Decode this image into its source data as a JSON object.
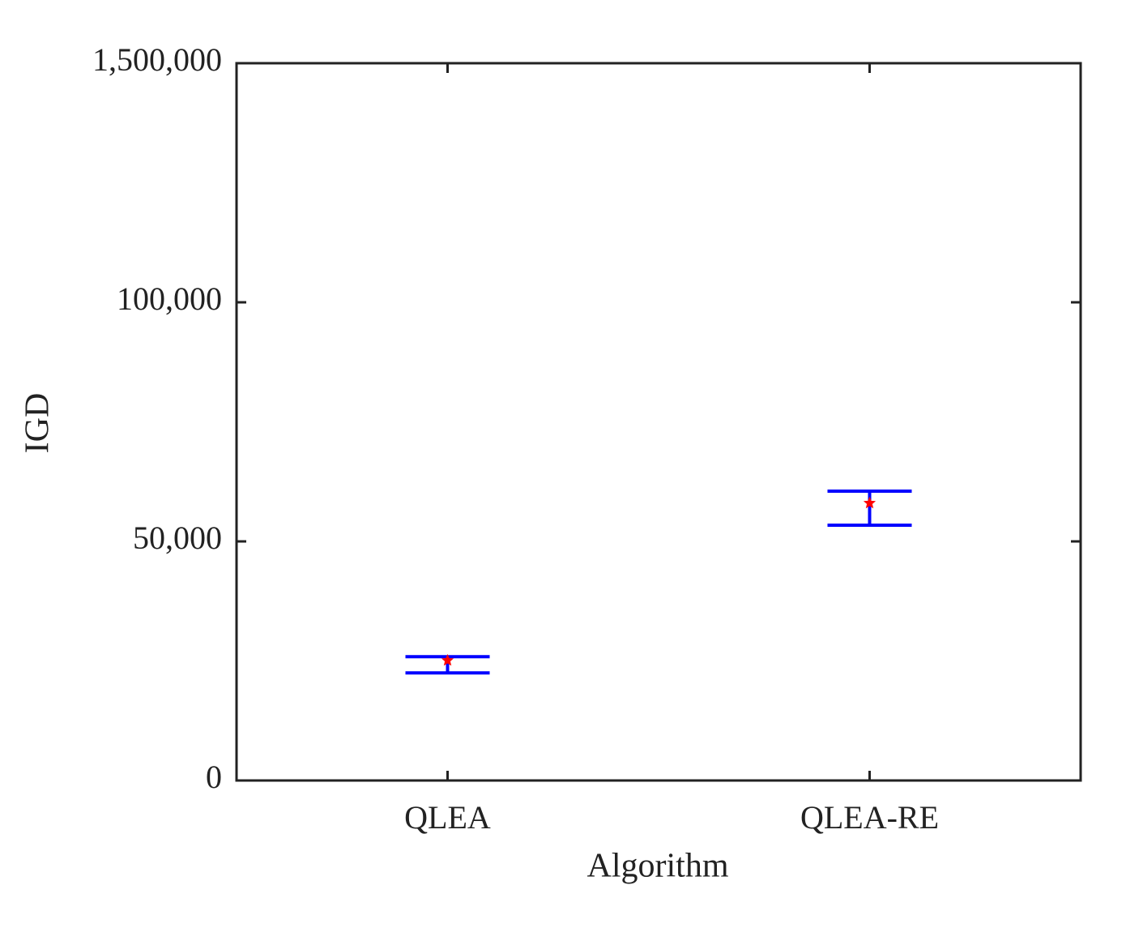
{
  "chart_data": {
    "type": "errorbar",
    "xlabel": "Algorithm",
    "ylabel": "IGD",
    "categories": [
      "QLEA",
      "QLEA-RE"
    ],
    "values": [
      25100,
      58000
    ],
    "lower": [
      22500,
      53400
    ],
    "upper": [
      25900,
      60500
    ],
    "color": "#0000ff",
    "marker_color": "#ff0000",
    "ylim": [
      0,
      1500000
    ],
    "yticks": [
      0,
      {
        "value": 50000,
        "label": "50,000"
      },
      {
        "value": 100000,
        "label": "100,000"
      },
      {
        "value": 1500000,
        "label": "1,500,000"
      }
    ]
  }
}
